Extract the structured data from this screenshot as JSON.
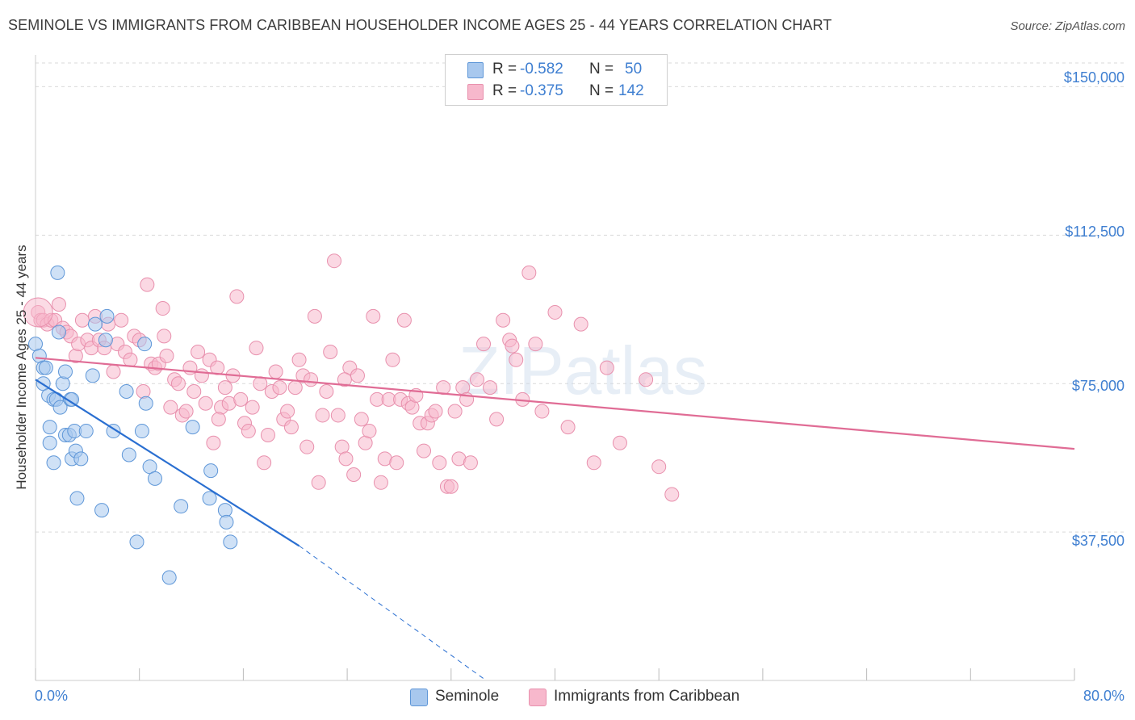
{
  "title": "SEMINOLE VS IMMIGRANTS FROM CARIBBEAN HOUSEHOLDER INCOME AGES 25 - 44 YEARS CORRELATION CHART",
  "source": "Source: ZipAtlas.com",
  "watermark": "ZIPatlas",
  "colors": {
    "seminole_fill": "#a8c8ee",
    "seminole_stroke": "#5f97d8",
    "seminole_line": "#2a6fd1",
    "caribbean_fill": "#f7b8cc",
    "caribbean_stroke": "#e890ad",
    "caribbean_line": "#e06c95",
    "tick_label": "#3f7fd1",
    "grid": "#d9d9d9"
  },
  "stats": {
    "r_label": "R =",
    "n_label": "N =",
    "seminole": {
      "r": "-0.582",
      "n": "50"
    },
    "caribbean": {
      "r": "-0.375",
      "n": "142"
    }
  },
  "legend": {
    "seminole": "Seminole",
    "caribbean": "Immigrants from Caribbean"
  },
  "chart_data": {
    "type": "scatter",
    "title": "SEMINOLE VS IMMIGRANTS FROM CARIBBEAN HOUSEHOLDER INCOME AGES 25 - 44 YEARS CORRELATION CHART",
    "xlabel": "",
    "ylabel": "Householder Income Ages 25 - 44 years",
    "xlim": [
      0,
      80
    ],
    "ylim": [
      0,
      156000
    ],
    "x_tick_labels": [
      "0.0%",
      "80.0%"
    ],
    "y_ticks": [
      37500,
      75000,
      112500,
      150000
    ],
    "y_tick_labels": [
      "$37,500",
      "$75,000",
      "$112,500",
      "$150,000"
    ],
    "grid": true,
    "legend_position": "bottom-center",
    "series": [
      {
        "name": "Seminole",
        "r": -0.582,
        "n": 50,
        "trend": {
          "x0": 0,
          "y0": 76000,
          "x1": 20.3,
          "y1": 34000,
          "dashed_to_x": 34.7,
          "dashed_to_y": 0
        },
        "points": [
          [
            0,
            85000
          ],
          [
            0.3,
            82000
          ],
          [
            0.6,
            79000
          ],
          [
            0.6,
            75000
          ],
          [
            0.8,
            79000
          ],
          [
            1,
            72000
          ],
          [
            1.1,
            60000
          ],
          [
            1.1,
            64000
          ],
          [
            1.4,
            71000
          ],
          [
            1.4,
            55000
          ],
          [
            1.6,
            71000
          ],
          [
            1.7,
            103000
          ],
          [
            1.8,
            88000
          ],
          [
            1.9,
            69000
          ],
          [
            2.1,
            75000
          ],
          [
            2.3,
            78000
          ],
          [
            2.3,
            62000
          ],
          [
            2.6,
            62000
          ],
          [
            2.7,
            71000
          ],
          [
            2.8,
            71000
          ],
          [
            2.8,
            56000
          ],
          [
            3,
            63000
          ],
          [
            3.1,
            58000
          ],
          [
            3.2,
            46000
          ],
          [
            3.5,
            56000
          ],
          [
            3.9,
            63000
          ],
          [
            4.4,
            77000
          ],
          [
            4.6,
            90000
          ],
          [
            5.1,
            43000
          ],
          [
            5.4,
            86000
          ],
          [
            5.5,
            92000
          ],
          [
            6,
            63000
          ],
          [
            7,
            73000
          ],
          [
            7.2,
            57000
          ],
          [
            7.8,
            35000
          ],
          [
            8.2,
            63000
          ],
          [
            8.4,
            85000
          ],
          [
            8.5,
            70000
          ],
          [
            8.8,
            54000
          ],
          [
            9.2,
            51000
          ],
          [
            10.3,
            26000
          ],
          [
            11.2,
            44000
          ],
          [
            12.1,
            64000
          ],
          [
            13.4,
            46000
          ],
          [
            13.5,
            53000
          ],
          [
            14.6,
            43000
          ],
          [
            14.7,
            40000
          ],
          [
            15,
            35000
          ]
        ]
      },
      {
        "name": "Immigrants from Caribbean",
        "r": -0.375,
        "n": 142,
        "trend": {
          "x0": 0,
          "y0": 81500,
          "x1": 80,
          "y1": 58500
        },
        "points": [
          [
            0.2,
            93000
          ],
          [
            0.4,
            91000
          ],
          [
            0.6,
            91000
          ],
          [
            0.9,
            90000
          ],
          [
            1.2,
            91000
          ],
          [
            1.5,
            91000
          ],
          [
            1.8,
            95000
          ],
          [
            2.1,
            89000
          ],
          [
            2.4,
            88000
          ],
          [
            2.7,
            87000
          ],
          [
            3.1,
            82000
          ],
          [
            3.3,
            85000
          ],
          [
            3.6,
            91000
          ],
          [
            4,
            86000
          ],
          [
            4.3,
            84000
          ],
          [
            4.6,
            92000
          ],
          [
            4.9,
            86000
          ],
          [
            5.3,
            84000
          ],
          [
            5.6,
            90000
          ],
          [
            6,
            78000
          ],
          [
            6.3,
            85000
          ],
          [
            6.6,
            91000
          ],
          [
            6.9,
            83000
          ],
          [
            7.3,
            81000
          ],
          [
            7.6,
            87000
          ],
          [
            8,
            86000
          ],
          [
            8.3,
            73000
          ],
          [
            8.6,
            100000
          ],
          [
            8.9,
            80000
          ],
          [
            9.2,
            79000
          ],
          [
            9.5,
            80000
          ],
          [
            9.8,
            94000
          ],
          [
            10.1,
            82000
          ],
          [
            10.4,
            69000
          ],
          [
            10.7,
            76000
          ],
          [
            11,
            75000
          ],
          [
            11.3,
            67000
          ],
          [
            11.6,
            68000
          ],
          [
            11.9,
            79000
          ],
          [
            12.2,
            73000
          ],
          [
            12.5,
            83000
          ],
          [
            12.8,
            77000
          ],
          [
            13.1,
            70000
          ],
          [
            13.4,
            81000
          ],
          [
            13.7,
            60000
          ],
          [
            14,
            79000
          ],
          [
            14.3,
            69000
          ],
          [
            14.6,
            74000
          ],
          [
            14.9,
            70000
          ],
          [
            15.2,
            77000
          ],
          [
            15.5,
            97000
          ],
          [
            15.8,
            71000
          ],
          [
            16.1,
            65000
          ],
          [
            16.4,
            63000
          ],
          [
            16.7,
            69000
          ],
          [
            17,
            84000
          ],
          [
            17.3,
            75000
          ],
          [
            17.6,
            55000
          ],
          [
            17.9,
            62000
          ],
          [
            18.2,
            73000
          ],
          [
            18.5,
            78000
          ],
          [
            18.8,
            74000
          ],
          [
            19.1,
            66000
          ],
          [
            19.4,
            68000
          ],
          [
            19.7,
            64000
          ],
          [
            20,
            74000
          ],
          [
            20.3,
            81000
          ],
          [
            20.6,
            77000
          ],
          [
            20.9,
            59000
          ],
          [
            21.2,
            76000
          ],
          [
            21.5,
            92000
          ],
          [
            21.8,
            50000
          ],
          [
            22.1,
            67000
          ],
          [
            22.4,
            73000
          ],
          [
            22.7,
            83000
          ],
          [
            23,
            106000
          ],
          [
            23.3,
            67000
          ],
          [
            23.6,
            59000
          ],
          [
            23.9,
            56000
          ],
          [
            24.2,
            79000
          ],
          [
            24.5,
            52000
          ],
          [
            24.8,
            77000
          ],
          [
            25.1,
            66000
          ],
          [
            25.4,
            60000
          ],
          [
            25.7,
            63000
          ],
          [
            26,
            92000
          ],
          [
            26.3,
            71000
          ],
          [
            26.6,
            50000
          ],
          [
            26.9,
            56000
          ],
          [
            27.2,
            71000
          ],
          [
            27.5,
            81000
          ],
          [
            27.8,
            55000
          ],
          [
            28.1,
            71000
          ],
          [
            28.4,
            91000
          ],
          [
            28.7,
            70000
          ],
          [
            29,
            69000
          ],
          [
            29.3,
            72000
          ],
          [
            29.6,
            65000
          ],
          [
            29.9,
            58000
          ],
          [
            30.2,
            65000
          ],
          [
            30.5,
            67000
          ],
          [
            30.8,
            68000
          ],
          [
            31.1,
            55000
          ],
          [
            31.4,
            74000
          ],
          [
            31.7,
            49000
          ],
          [
            32,
            49000
          ],
          [
            32.3,
            68000
          ],
          [
            32.6,
            56000
          ],
          [
            32.9,
            74000
          ],
          [
            33.2,
            71000
          ],
          [
            33.5,
            55000
          ],
          [
            34,
            76000
          ],
          [
            34.5,
            85000
          ],
          [
            35,
            74000
          ],
          [
            35.5,
            66000
          ],
          [
            36,
            91000
          ],
          [
            36.5,
            86000
          ],
          [
            37,
            81000
          ],
          [
            37.5,
            71000
          ],
          [
            38,
            103000
          ],
          [
            38.5,
            85000
          ],
          [
            39,
            68000
          ],
          [
            40,
            93000
          ],
          [
            41,
            64000
          ],
          [
            42,
            90000
          ],
          [
            43,
            55000
          ],
          [
            44,
            79000
          ],
          [
            45,
            60000
          ],
          [
            47,
            76000
          ],
          [
            48,
            54000
          ],
          [
            49,
            47000
          ],
          [
            36.7,
            84500
          ],
          [
            14.1,
            66000
          ],
          [
            23.8,
            76000
          ],
          [
            9.9,
            87000
          ]
        ]
      }
    ]
  }
}
